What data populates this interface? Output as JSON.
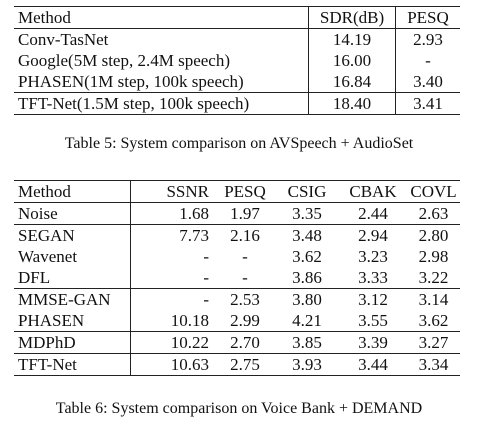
{
  "table5": {
    "headers": [
      "Method",
      "SDR(dB)",
      "PESQ"
    ],
    "rows": [
      [
        "Conv-TasNet",
        "14.19",
        "2.93"
      ],
      [
        "Google(5M step, 2.4M speech)",
        "16.00",
        "-"
      ],
      [
        "PHASEN(1M step, 100k speech)",
        "16.84",
        "3.40"
      ],
      [
        "TFT-Net(1.5M step, 100k speech)",
        "18.40",
        "3.41"
      ]
    ],
    "caption": "Table 5: System comparison on AVSpeech + AudioSet"
  },
  "table6": {
    "headers": [
      "Method",
      "SSNR",
      "PESQ",
      "CSIG",
      "CBAK",
      "COVL"
    ],
    "rows": [
      [
        "Noise",
        "1.68",
        "1.97",
        "3.35",
        "2.44",
        "2.63"
      ],
      [
        "SEGAN",
        "7.73",
        "2.16",
        "3.48",
        "2.94",
        "2.80"
      ],
      [
        "Wavenet",
        "-",
        "-",
        "3.62",
        "3.23",
        "2.98"
      ],
      [
        "DFL",
        "-",
        "-",
        "3.86",
        "3.33",
        "3.22"
      ],
      [
        "MMSE-GAN",
        "-",
        "2.53",
        "3.80",
        "3.12",
        "3.14"
      ],
      [
        "PHASEN",
        "10.18",
        "2.99",
        "4.21",
        "3.55",
        "3.62"
      ],
      [
        "MDPhD",
        "10.22",
        "2.70",
        "3.85",
        "3.39",
        "3.27"
      ],
      [
        "TFT-Net",
        "10.63",
        "2.75",
        "3.93",
        "3.44",
        "3.34"
      ]
    ],
    "caption": "Table 6: System comparison on Voice Bank + DEMAND"
  }
}
